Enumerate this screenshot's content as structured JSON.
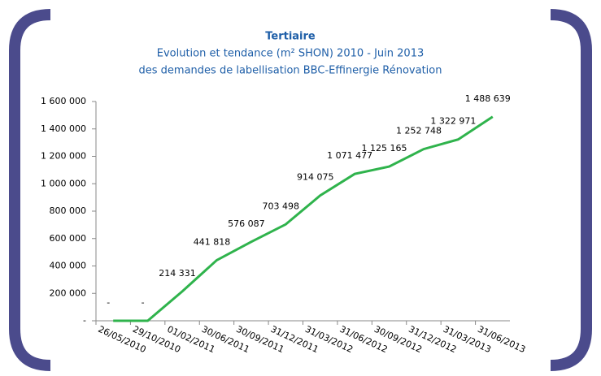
{
  "chart_data": {
    "type": "line",
    "title": "Tertiaire",
    "subtitle": [
      "Evolution et tendance (m² SHON) 2010  - Juin 2013",
      "des demandes de labellisation BBC-Effinergie Rénovation"
    ],
    "categories": [
      "26/05/2010",
      "29/10/2010",
      "01/02/2011",
      "30/06/2011",
      "30/09/2011",
      "31/12/2011",
      "31/03/2012",
      "31/06/2012",
      "30/09/2012",
      "31/12/2012",
      "31/03/2013",
      "31/06/2013"
    ],
    "values": [
      0,
      0,
      214331,
      441818,
      576087,
      703498,
      914075,
      1071477,
      1125165,
      1252748,
      1322971,
      1488639
    ],
    "value_labels": [
      "-",
      "-",
      "214 331",
      "441 818",
      "576 087",
      "703 498",
      "914 075",
      "1 071 477",
      "1 125 165",
      "1 252 748",
      "1 322 971",
      "1 488 639"
    ],
    "color": "#2fb34c",
    "ylim": [
      0,
      1600000
    ],
    "yticks": [
      {
        "value": 0,
        "label": "-"
      },
      {
        "value": 200000,
        "label": "200 000"
      },
      {
        "value": 400000,
        "label": "400 000"
      },
      {
        "value": 600000,
        "label": "600 000"
      },
      {
        "value": 800000,
        "label": "800 000"
      },
      {
        "value": 1000000,
        "label": "1 000 000"
      },
      {
        "value": 1200000,
        "label": "1 200 000"
      },
      {
        "value": 1400000,
        "label": "1 400 000"
      },
      {
        "value": 1600000,
        "label": "1 600 000"
      }
    ]
  }
}
